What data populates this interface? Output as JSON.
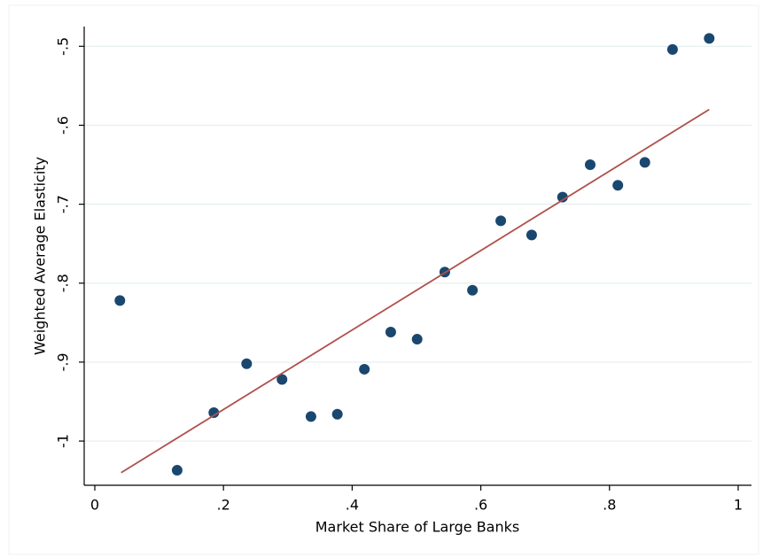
{
  "chart_data": {
    "type": "scatter",
    "x_label": "Market Share of Large Banks",
    "y_label": "Weighted Average Elasticity",
    "x": [
      0.039,
      0.128,
      0.185,
      0.236,
      0.291,
      0.336,
      0.377,
      0.419,
      0.46,
      0.501,
      0.544,
      0.587,
      0.631,
      0.679,
      0.727,
      0.77,
      0.813,
      0.855,
      0.898,
      0.955
    ],
    "values": [
      -0.822,
      -1.037,
      -0.964,
      -0.902,
      -0.922,
      -0.969,
      -0.966,
      -0.909,
      -0.862,
      -0.871,
      -0.786,
      -0.809,
      -0.721,
      -0.739,
      -0.691,
      -0.65,
      -0.676,
      -0.647,
      -0.504,
      -0.49
    ],
    "color": "#1a476f",
    "fit": {
      "x": [
        0.041,
        0.955
      ],
      "values": [
        -1.04,
        -0.58
      ],
      "color": "#b0504c"
    },
    "xlim": [
      -0.0165,
      1.0207
    ],
    "ylim": [
      -1.056,
      -0.475
    ],
    "xticks": [
      0,
      {
        "value": 0.2,
        "label": ".2"
      },
      {
        "value": 0.4,
        "label": ".4"
      },
      {
        "value": 0.6,
        "label": ".6"
      },
      {
        "value": 0.8,
        "label": ".8"
      },
      1
    ],
    "yticks": [
      {
        "value": -0.5,
        "label": "-.5"
      },
      {
        "value": -0.6,
        "label": "-.6"
      },
      {
        "value": -0.7,
        "label": "-.7"
      },
      {
        "value": -0.8,
        "label": "-.8"
      },
      {
        "value": -0.9,
        "label": "-.9"
      },
      -1
    ],
    "grid": true
  }
}
